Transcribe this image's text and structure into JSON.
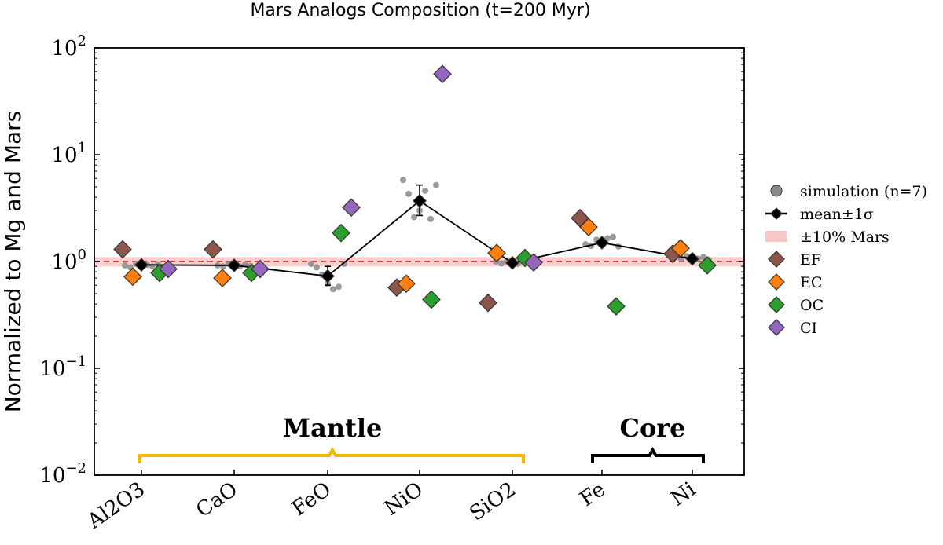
{
  "chart_data": {
    "type": "scatter",
    "title": "Mars Analogs Composition (t=200 Myr)",
    "ylabel": "Normalized to Mg and Mars",
    "xlabel": "",
    "yscale": "log",
    "ylim": [
      0.01,
      100
    ],
    "yticks": [
      {
        "value": 0.01,
        "base": "10",
        "exp": "−2"
      },
      {
        "value": 0.1,
        "base": "10",
        "exp": "−1"
      },
      {
        "value": 1,
        "base": "10",
        "exp": "0"
      },
      {
        "value": 10,
        "base": "10",
        "exp": "1"
      },
      {
        "value": 100,
        "base": "10",
        "exp": "2"
      }
    ],
    "categories": [
      "Al2O3",
      "CaO",
      "FeO",
      "NiO",
      "SiO2",
      "Fe",
      "Ni"
    ],
    "reference_line": {
      "value": 1.0,
      "band": [
        0.9,
        1.1
      ],
      "color": "#d62728",
      "band_color": "#f7c6c6"
    },
    "simulation": {
      "name": "simulation (n=7)",
      "color": "#8a8a8a",
      "points": [
        [
          0.92,
          0.88,
          0.95,
          0.9,
          0.93,
          0.9,
          0.94
        ],
        [
          0.92,
          0.9,
          0.95,
          0.93,
          0.9,
          0.94,
          0.91
        ],
        [
          0.95,
          0.88,
          0.75,
          0.62,
          0.55,
          0.58,
          0.95
        ],
        [
          5.8,
          4.3,
          2.6,
          3.0,
          4.6,
          2.5,
          5.2
        ],
        [
          1.0,
          0.96,
          1.0,
          0.98,
          0.95,
          1.02,
          0.97
        ],
        [
          1.45,
          1.4,
          1.6,
          1.55,
          1.65,
          1.7,
          1.38
        ],
        [
          1.1,
          1.05,
          1.12,
          1.08,
          1.06,
          1.1,
          1.04
        ]
      ]
    },
    "mean": {
      "name": "mean±1σ",
      "color": "#000000",
      "values": [
        0.93,
        0.92,
        0.73,
        3.7,
        0.97,
        1.5,
        1.06
      ],
      "err_low": [
        null,
        null,
        0.6,
        2.7,
        null,
        null,
        null
      ],
      "err_high": [
        null,
        null,
        0.9,
        5.2,
        null,
        null,
        null
      ]
    },
    "band_label": "±10% Mars",
    "series": [
      {
        "name": "EF",
        "color": "#8c564b",
        "values": [
          1.3,
          1.3,
          null,
          0.57,
          0.41,
          2.55,
          1.18
        ]
      },
      {
        "name": "EC",
        "color": "#ff7f0e",
        "values": [
          0.72,
          0.7,
          null,
          0.62,
          1.2,
          2.1,
          1.33
        ]
      },
      {
        "name": "OC",
        "color": "#2ca02c",
        "values": [
          0.78,
          0.78,
          1.85,
          0.44,
          1.08,
          0.38,
          0.92
        ]
      },
      {
        "name": "CI",
        "color": "#9467bd",
        "values": [
          0.85,
          0.85,
          3.2,
          57,
          0.98,
          null,
          null
        ]
      }
    ],
    "groups": [
      {
        "label": "Mantle",
        "from": 0,
        "to": 4,
        "color": "#f5b800"
      },
      {
        "label": "Core",
        "from": 5,
        "to": 6,
        "color": "#000000"
      }
    ],
    "legend_position": "outside-right"
  }
}
